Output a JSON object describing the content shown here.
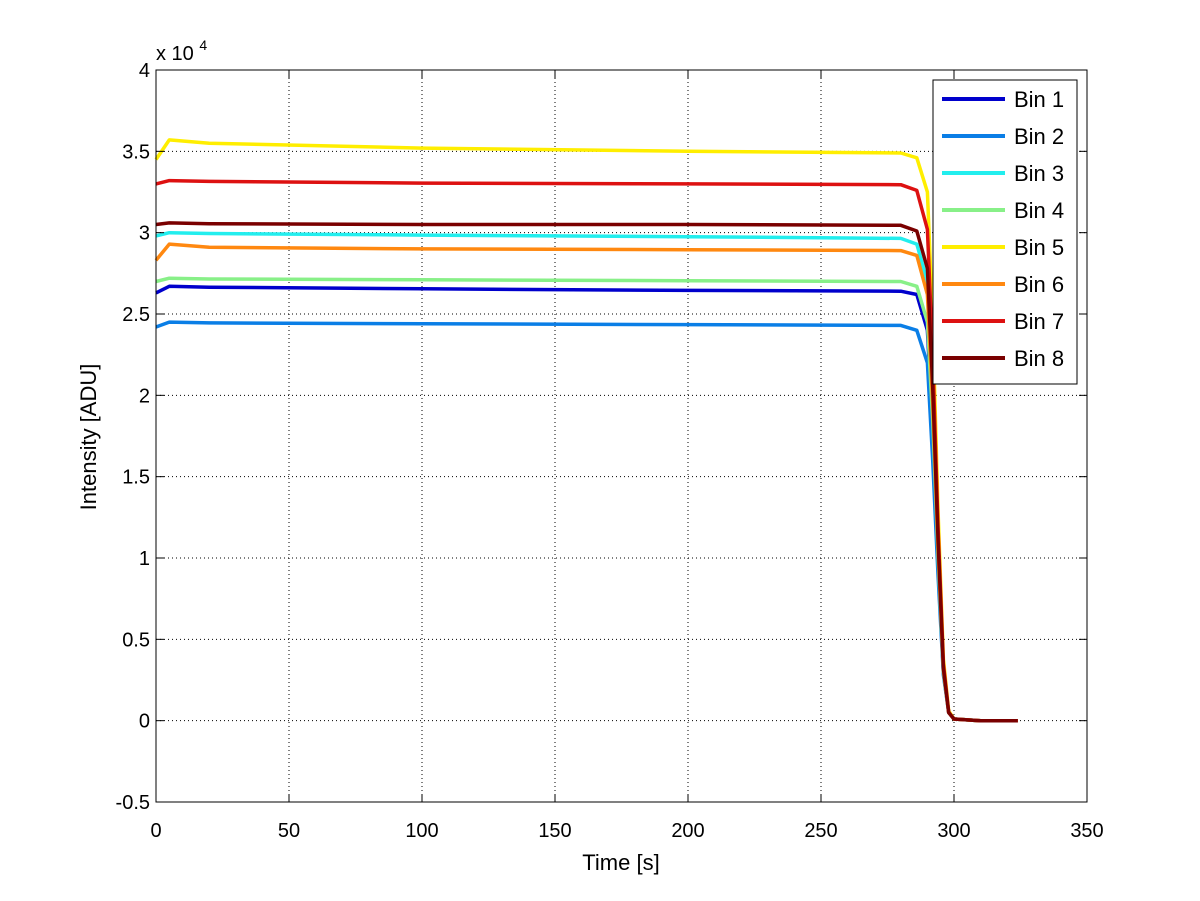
{
  "chart_data": {
    "type": "line",
    "title": "",
    "xlabel": "Time [s]",
    "ylabel": "Intensity [ADU]",
    "y_multiplier_label": {
      "base": "x 10",
      "exponent": "4"
    },
    "xlim": [
      0,
      350
    ],
    "ylim": [
      -0.5,
      4
    ],
    "xticks": [
      0,
      50,
      100,
      150,
      200,
      250,
      300,
      350
    ],
    "yticks": [
      -0.5,
      0,
      0.5,
      1,
      1.5,
      2,
      2.5,
      3,
      3.5,
      4
    ],
    "xtick_labels": [
      "0",
      "50",
      "100",
      "150",
      "200",
      "250",
      "300",
      "350"
    ],
    "ytick_labels": [
      "-0.5",
      "0",
      "0.5",
      "1",
      "1.5",
      "2",
      "2.5",
      "3",
      "3.5",
      "4"
    ],
    "grid": true,
    "grid_style": "dotted",
    "legend_position": "top-right",
    "x": [
      0,
      5,
      20,
      100,
      200,
      280,
      286,
      290,
      292,
      294,
      296,
      298,
      300,
      310,
      324
    ],
    "series": [
      {
        "name": "Bin 1",
        "color": "#0000cc",
        "values": [
          2.63,
          2.67,
          2.665,
          2.655,
          2.645,
          2.64,
          2.62,
          2.4,
          1.8,
          1.0,
          0.3,
          0.05,
          0.01,
          0,
          0
        ]
      },
      {
        "name": "Bin 2",
        "color": "#0a7ee6",
        "values": [
          2.42,
          2.45,
          2.445,
          2.44,
          2.435,
          2.43,
          2.4,
          2.2,
          1.6,
          0.9,
          0.28,
          0.05,
          0.01,
          0,
          0
        ]
      },
      {
        "name": "Bin 3",
        "color": "#22eeee",
        "values": [
          2.98,
          3.0,
          2.995,
          2.985,
          2.975,
          2.965,
          2.93,
          2.7,
          2.0,
          1.1,
          0.32,
          0.05,
          0.01,
          0,
          0
        ]
      },
      {
        "name": "Bin 4",
        "color": "#88f088",
        "values": [
          2.7,
          2.72,
          2.715,
          2.71,
          2.705,
          2.7,
          2.67,
          2.45,
          1.85,
          1.02,
          0.3,
          0.05,
          0.01,
          0,
          0
        ]
      },
      {
        "name": "Bin 5",
        "color": "#ffee00",
        "values": [
          3.45,
          3.57,
          3.55,
          3.52,
          3.5,
          3.49,
          3.46,
          3.25,
          2.45,
          1.3,
          0.38,
          0.06,
          0.01,
          0,
          0
        ]
      },
      {
        "name": "Bin 6",
        "color": "#ff8810",
        "values": [
          2.83,
          2.93,
          2.91,
          2.9,
          2.895,
          2.89,
          2.86,
          2.62,
          1.95,
          1.07,
          0.31,
          0.05,
          0.01,
          0,
          0
        ]
      },
      {
        "name": "Bin 7",
        "color": "#dd1111",
        "values": [
          3.3,
          3.32,
          3.315,
          3.305,
          3.3,
          3.295,
          3.26,
          3.02,
          2.25,
          1.2,
          0.35,
          0.05,
          0.01,
          0,
          0
        ]
      },
      {
        "name": "Bin 8",
        "color": "#7a0000",
        "values": [
          3.05,
          3.06,
          3.055,
          3.05,
          3.05,
          3.045,
          3.01,
          2.78,
          2.05,
          1.12,
          0.32,
          0.05,
          0.01,
          0,
          0
        ]
      }
    ]
  }
}
